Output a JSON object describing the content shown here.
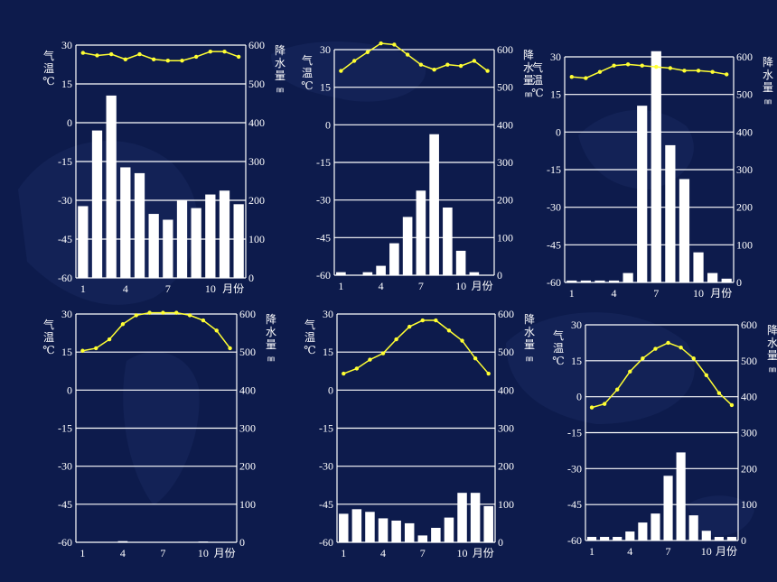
{
  "labels": {
    "temp_axis": [
      "气",
      "温",
      "℃"
    ],
    "precip_axis": [
      "降",
      "水",
      "量",
      "㎜"
    ],
    "month_unit": "月份"
  },
  "colors": {
    "background": "#0d1b4c",
    "temperature_line": "#ffff33",
    "bars": "#ffffff",
    "grid": "#ffffff"
  },
  "chart_data": [
    {
      "type": "bar+line",
      "x_ticks": [
        "1",
        "4",
        "7",
        "10"
      ],
      "temp_ticks": [
        "30",
        "15",
        "0",
        "-15",
        "-30",
        "-45",
        "-60"
      ],
      "precip_ticks": [
        "600",
        "500",
        "400",
        "300",
        "200",
        "100",
        "0"
      ],
      "temp_range": [
        -60,
        30
      ],
      "precip_range": [
        0,
        600
      ],
      "months": [
        1,
        2,
        3,
        4,
        5,
        6,
        7,
        8,
        9,
        10,
        11,
        12
      ],
      "temperature": [
        27,
        26,
        26.5,
        24.5,
        26.5,
        24.5,
        24,
        24,
        25.5,
        27.5,
        27.5,
        25.5
      ],
      "precipitation": [
        185,
        380,
        470,
        285,
        270,
        165,
        150,
        200,
        180,
        215,
        225,
        190
      ]
    },
    {
      "type": "bar+line",
      "x_ticks": [
        "1",
        "4",
        "7",
        "10"
      ],
      "temp_ticks": [
        "30",
        "15",
        "0",
        "-15",
        "-30",
        "-45",
        "-60"
      ],
      "precip_ticks": [
        "600",
        "500",
        "400",
        "300",
        "200",
        "100",
        "0"
      ],
      "temp_range": [
        -60,
        30
      ],
      "precip_range": [
        0,
        600
      ],
      "months": [
        1,
        2,
        3,
        4,
        5,
        6,
        7,
        8,
        9,
        10,
        11,
        12
      ],
      "temperature": [
        21.5,
        25.5,
        29,
        32.5,
        32,
        28,
        24,
        22,
        24,
        23.5,
        25.5,
        21.5
      ],
      "precipitation": [
        8,
        0,
        8,
        25,
        85,
        155,
        225,
        375,
        180,
        65,
        8,
        0
      ]
    },
    {
      "type": "bar+line",
      "x_ticks": [
        "1",
        "4",
        "7",
        "10"
      ],
      "temp_ticks": [
        "30",
        "15",
        "0",
        "-15",
        "-30",
        "-45",
        "-60"
      ],
      "precip_ticks": [
        "600",
        "500",
        "400",
        "300",
        "200",
        "100",
        "0"
      ],
      "temp_range": [
        -60,
        30
      ],
      "precip_range": [
        0,
        600
      ],
      "months": [
        1,
        2,
        3,
        4,
        5,
        6,
        7,
        8,
        9,
        10,
        11,
        12
      ],
      "temperature": [
        22,
        21.5,
        24,
        26.5,
        27,
        26.5,
        26,
        25.5,
        24.5,
        24.5,
        24,
        23
      ],
      "precipitation": [
        5,
        5,
        5,
        5,
        25,
        470,
        615,
        365,
        275,
        80,
        25,
        10
      ]
    },
    {
      "type": "bar+line",
      "x_ticks": [
        "1",
        "4",
        "7",
        "10"
      ],
      "temp_ticks": [
        "30",
        "15",
        "0",
        "-15",
        "-30",
        "-45",
        "-60"
      ],
      "precip_ticks": [
        "600",
        "500",
        "400",
        "300",
        "200",
        "100",
        "0"
      ],
      "temp_range": [
        -60,
        30
      ],
      "precip_range": [
        0,
        600
      ],
      "months": [
        1,
        2,
        3,
        4,
        5,
        6,
        7,
        8,
        9,
        10,
        11,
        12
      ],
      "temperature": [
        15.5,
        16.5,
        20,
        26,
        29.5,
        30.5,
        30.5,
        30.5,
        29.5,
        27.5,
        23.5,
        16.5
      ],
      "precipitation": [
        0,
        0,
        0,
        3,
        0,
        0,
        0,
        0,
        0,
        2,
        0,
        0
      ]
    },
    {
      "type": "bar+line",
      "x_ticks": [
        "1",
        "4",
        "7",
        "10"
      ],
      "temp_ticks": [
        "30",
        "15",
        "0",
        "-15",
        "-30",
        "-45",
        "-60"
      ],
      "precip_ticks": [
        "600",
        "500",
        "400",
        "300",
        "200",
        "100",
        "0"
      ],
      "temp_range": [
        -60,
        30
      ],
      "precip_range": [
        0,
        600
      ],
      "months": [
        1,
        2,
        3,
        4,
        5,
        6,
        7,
        8,
        9,
        10,
        11,
        12
      ],
      "temperature": [
        6.5,
        8.5,
        12,
        14.5,
        20,
        25,
        27.5,
        27.5,
        23.5,
        19.5,
        12.5,
        6.5
      ],
      "precipitation": [
        75,
        87,
        80,
        63,
        57,
        50,
        18,
        38,
        65,
        130,
        130,
        95
      ]
    },
    {
      "type": "bar+line",
      "x_ticks": [
        "1",
        "4",
        "7",
        "10"
      ],
      "temp_ticks": [
        "30",
        "15",
        "0",
        "-15",
        "-30",
        "-45",
        "-60"
      ],
      "precip_ticks": [
        "600",
        "500",
        "400",
        "300",
        "200",
        "100",
        "0"
      ],
      "temp_range": [
        -60,
        30
      ],
      "precip_range": [
        0,
        600
      ],
      "months": [
        1,
        2,
        3,
        4,
        5,
        6,
        7,
        8,
        9,
        10,
        11,
        12
      ],
      "temperature": [
        -4.5,
        -3,
        3,
        10.5,
        16,
        20,
        22.5,
        20.5,
        16,
        9,
        1.5,
        -3.5
      ],
      "precipitation": [
        10,
        10,
        10,
        25,
        50,
        75,
        180,
        245,
        70,
        27,
        10,
        10
      ]
    }
  ]
}
